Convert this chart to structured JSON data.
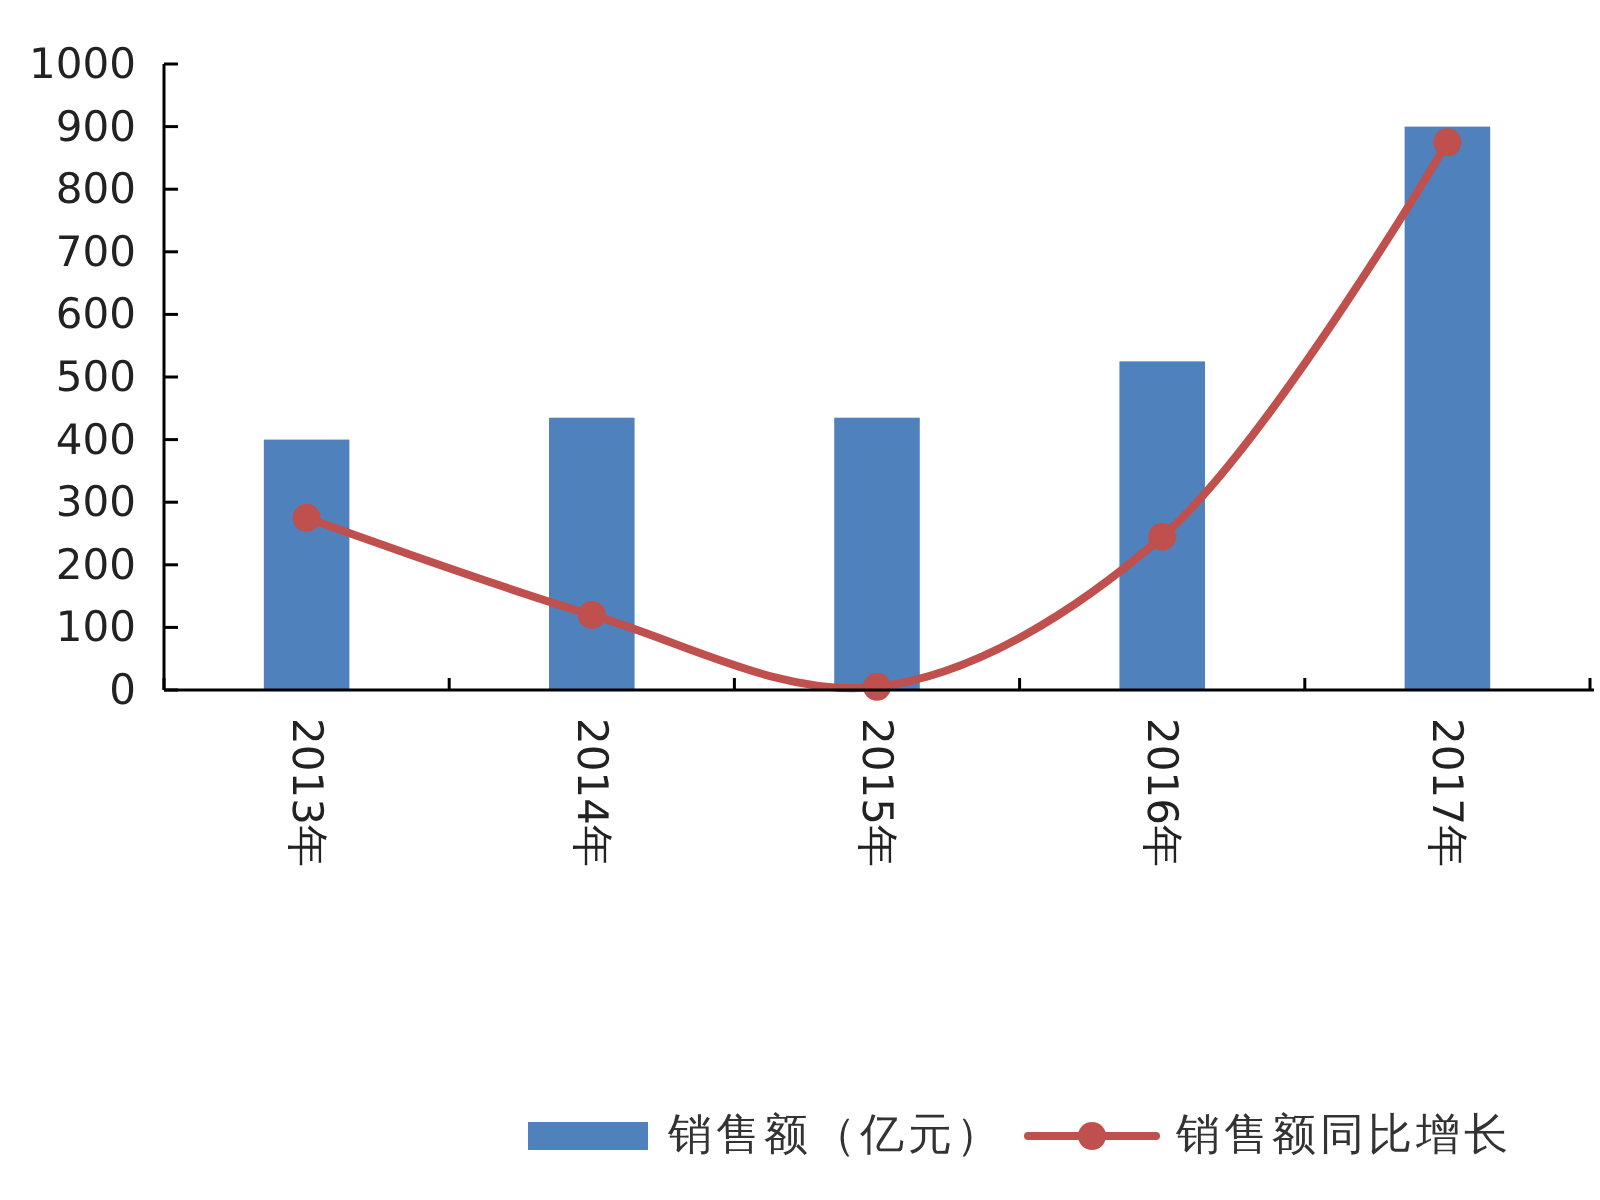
{
  "chart_data": {
    "type": "bar",
    "categories": [
      "2013年",
      "2014年",
      "2015年",
      "2016年",
      "2017年"
    ],
    "series": [
      {
        "name": "销售额（亿元）",
        "color": "#4f81bd",
        "values": [
          400,
          435,
          435,
          525,
          900
        ]
      },
      {
        "name": "销售额同比增长",
        "type": "line",
        "color": "#c0504d",
        "values": [
          275,
          120,
          5,
          245,
          875
        ]
      }
    ],
    "ylim": [
      0,
      1000
    ],
    "yticks": [
      0,
      100,
      200,
      300,
      400,
      500,
      600,
      700,
      800,
      900,
      1000
    ],
    "legend": "bottom",
    "marker": "circle",
    "line_style": "solid"
  }
}
